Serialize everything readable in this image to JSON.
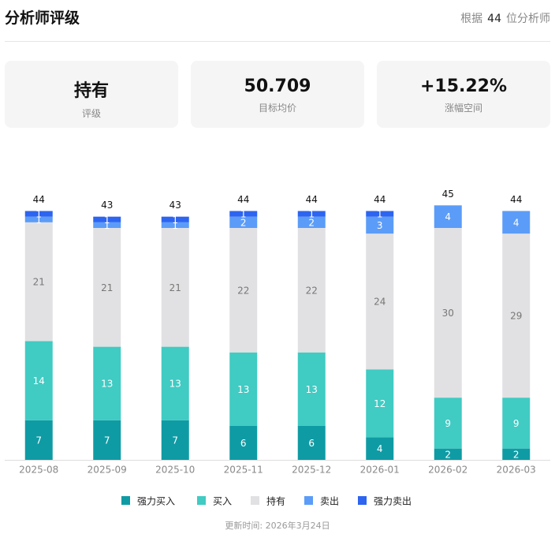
{
  "header": {
    "title": "分析师评级",
    "count_prefix": "根据",
    "count": 44,
    "count_suffix": "位分析师"
  },
  "cards": [
    {
      "value": "持有",
      "label": "评级"
    },
    {
      "value": "50.709",
      "label": "目标均价"
    },
    {
      "value": "+15.22%",
      "label": "涨幅空间"
    }
  ],
  "chart_data": {
    "type": "stacked_bar",
    "categories": [
      "2025-08",
      "2025-09",
      "2025-10",
      "2025-11",
      "2025-12",
      "2026-01",
      "2026-02",
      "2026-03"
    ],
    "series": [
      {
        "name": "强力买入",
        "color": "#0f9ba4",
        "values": [
          7,
          7,
          7,
          6,
          6,
          4,
          2,
          2
        ]
      },
      {
        "name": "买入",
        "color": "#40cbc3",
        "values": [
          14,
          13,
          13,
          13,
          13,
          12,
          9,
          9
        ]
      },
      {
        "name": "持有",
        "color": "#e1e1e3",
        "values": [
          21,
          21,
          21,
          22,
          22,
          24,
          30,
          29
        ]
      },
      {
        "name": "卖出",
        "color": "#5b9cf8",
        "values": [
          1,
          1,
          1,
          2,
          2,
          3,
          4,
          4
        ]
      },
      {
        "name": "强力卖出",
        "color": "#2d64f0",
        "values": [
          1,
          1,
          1,
          1,
          1,
          1,
          0,
          0
        ]
      }
    ],
    "totals": [
      44,
      43,
      43,
      44,
      44,
      44,
      45,
      44
    ]
  },
  "footer": "更新时间: 2026年3月24日"
}
